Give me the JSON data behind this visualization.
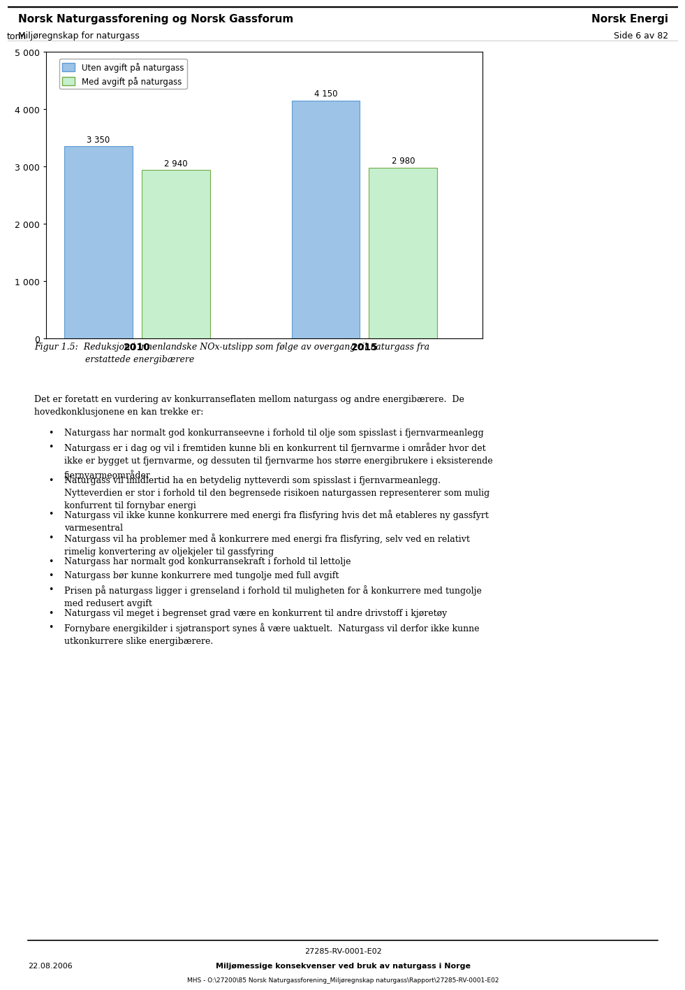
{
  "header_left_line1": "Norsk Naturgassforening og Norsk Gassforum",
  "header_left_line2": "Miljøregnskap for naturgass",
  "header_right_line1": "Norsk Energi",
  "header_right_line2": "Side 6 av 82",
  "ylabel": "tonn",
  "ylim": [
    0,
    5000
  ],
  "yticks": [
    0,
    1000,
    2000,
    3000,
    4000,
    5000
  ],
  "ytick_labels": [
    "0",
    "1 000",
    "2 000",
    "3 000",
    "4 000",
    "5 000"
  ],
  "categories": [
    "2010",
    "2015"
  ],
  "bar1_values": [
    3350,
    4150
  ],
  "bar2_values": [
    2940,
    2980
  ],
  "bar1_color": "#9DC3E6",
  "bar2_color": "#C6EFCE",
  "bar1_edge": "#5B9BD5",
  "bar2_edge": "#70AD47",
  "bar1_label": "Uten avgift på naturgass",
  "bar2_label": "Med avgift på naturgass",
  "bar1_labels": [
    "3 350",
    "4 150"
  ],
  "bar2_labels": [
    "2 940",
    "2 980"
  ],
  "fig_caption": "Figur 1.5:  Reduksjon i innenlandske NOx-utslipp som følge av overgang til naturgass fra\n                  erstattede energibærere",
  "intro_text": "Det er foretatt en vurdering av konkurranseflaten mellom naturgass og andre energibærere.  De\nhovedkonklusjonene en kan trekke er:",
  "bullets": [
    "Naturgass har normalt god konkurranseevne i forhold til olje som spisslast i fjernvarmeanlegg",
    "Naturgass er i dag og vil i fremtiden kunne bli en konkurrent til fjernvarme i områder hvor det\nikke er bygget ut fjernvarme, og dessuten til fjernvarme hos større energibrukere i eksisterende\nfjernvarmeområder",
    "Naturgass vil imidlertid ha en betydelig nytteverdi som spisslast i fjernvarmeanlegg.\nNytteverdien er stor i forhold til den begrensede risikoen naturgassen representerer som mulig\nkonfurrent til fornybar energi",
    "Naturgass vil ikke kunne konkurrere med energi fra flisfyring hvis det må etableres ny gassfyrt\nvarmesentral",
    "Naturgass vil ha problemer med å konkurrere med energi fra flisfyring, selv ved en relativt\nrimelig konvertering av oljekjeler til gassfyring",
    "Naturgass har normalt god konkurransekraft i forhold til lettolje",
    "Naturgass bør kunne konkurrere med tungolje med full avgift",
    "Prisen på naturgass ligger i grenseland i forhold til muligheten for å konkurrere med tungolje\nmed redusert avgift",
    "Naturgass vil meget i begrenset grad være en konkurrent til andre drivstoff i kjøretøy",
    "Fornybare energikilder i sjøtransport synes å være uaktuelt.  Naturgass vil derfor ikke kunne\nutkonkurrere slike energibærere."
  ],
  "footer_center_line1": "27285-RV-0001-E02",
  "footer_left": "22.08.2006",
  "footer_center_line2": "Miljømessige konsekvenser ved bruk av naturgass i Norge",
  "footer_bottom": "MHS - O:\\27200\\85 Norsk Naturgassforening_Miljøregnskap naturgass\\Rapport\\27285-RV-0001-E02",
  "background_color": "#FFFFFF"
}
